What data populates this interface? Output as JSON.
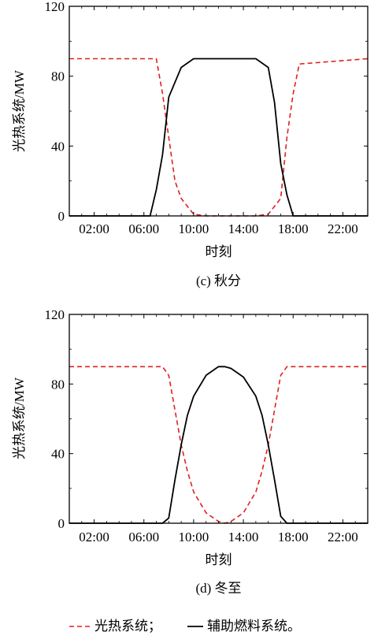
{
  "figure": {
    "legend": {
      "solar_label": "光热系统；",
      "aux_label": "辅助燃料系统。"
    }
  },
  "chart_data": [
    {
      "type": "line",
      "caption": "(c) 秋分",
      "xlabel": "时刻",
      "ylabel": "光热系统/MW",
      "x_tick_labels": [
        "02:00",
        "06:00",
        "10:00",
        "14:00",
        "18:00",
        "22:00"
      ],
      "y_tick_labels": [
        "0",
        "40",
        "80",
        "120"
      ],
      "xlim": [
        0,
        24
      ],
      "ylim": [
        0,
        120
      ],
      "legend_position": "below",
      "series": [
        {
          "style": "dashed",
          "color": "#e02020",
          "x": [
            0,
            7,
            7.5,
            8,
            8.5,
            9,
            10,
            11,
            12,
            13,
            14,
            15,
            16,
            17,
            17.5,
            18,
            18.5,
            24
          ],
          "y": [
            90,
            90,
            70,
            45,
            20,
            10,
            1,
            0,
            0,
            0,
            0,
            0,
            1,
            10,
            45,
            70,
            87,
            90
          ]
        },
        {
          "style": "solid",
          "color": "#000000",
          "x": [
            0,
            6.5,
            7,
            7.5,
            8,
            9,
            10,
            11,
            12,
            13,
            14,
            15,
            16,
            16.5,
            17,
            17.5,
            18,
            24
          ],
          "y": [
            0,
            0,
            15,
            35,
            68,
            85,
            90,
            90,
            90,
            90,
            90,
            90,
            85,
            65,
            30,
            12,
            0,
            0
          ]
        }
      ]
    },
    {
      "type": "line",
      "caption": "(d) 冬至",
      "xlabel": "时刻",
      "ylabel": "光热系统/MW",
      "x_tick_labels": [
        "02:00",
        "06:00",
        "10:00",
        "14:00",
        "18:00",
        "22:00"
      ],
      "y_tick_labels": [
        "0",
        "40",
        "80",
        "120"
      ],
      "xlim": [
        0,
        24
      ],
      "ylim": [
        0,
        120
      ],
      "legend_position": "below",
      "series": [
        {
          "style": "dashed",
          "color": "#e02020",
          "x": [
            0,
            7.5,
            8,
            8.5,
            9,
            9.5,
            10,
            11,
            12,
            12.5,
            13,
            14,
            15,
            15.5,
            16,
            16.5,
            17,
            17.5,
            24
          ],
          "y": [
            90,
            90,
            85,
            65,
            45,
            30,
            18,
            6,
            1,
            0,
            1,
            6,
            18,
            30,
            45,
            65,
            85,
            90,
            90
          ]
        },
        {
          "style": "solid",
          "color": "#000000",
          "x": [
            0,
            7.5,
            8,
            8.5,
            9,
            9.5,
            10,
            11,
            12,
            12.5,
            13,
            14,
            15,
            15.5,
            16,
            16.5,
            17,
            17.5,
            24
          ],
          "y": [
            0,
            0,
            3,
            25,
            45,
            62,
            73,
            85,
            90,
            90,
            89,
            84,
            73,
            62,
            45,
            25,
            4,
            0,
            0
          ]
        }
      ]
    }
  ]
}
